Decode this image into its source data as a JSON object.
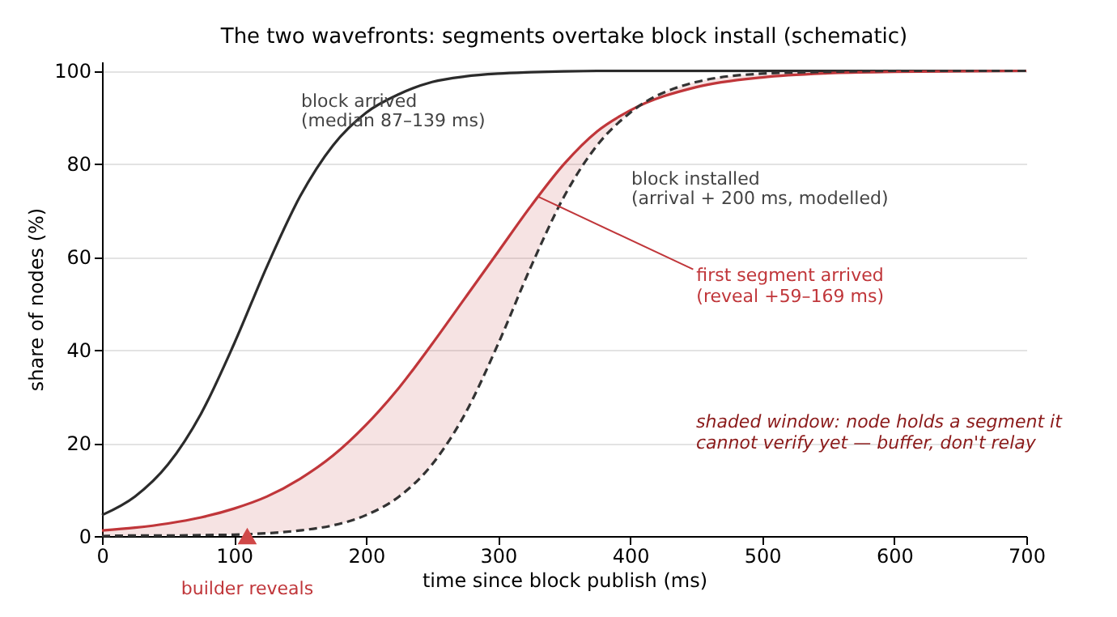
{
  "chart_data": {
    "type": "line",
    "title": "The two wavefronts: segments overtake block install (schematic)",
    "xlabel": "time since block publish (ms)",
    "ylabel": "share of nodes (%)",
    "x": [
      0,
      25,
      50,
      75,
      100,
      125,
      150,
      175,
      200,
      225,
      250,
      275,
      300,
      325,
      350,
      375,
      400,
      450,
      500,
      550,
      600,
      700
    ],
    "series": [
      {
        "name": "block arrived",
        "color": "#2b2b2b",
        "line_style": "solid",
        "values": [
          4.5,
          8.5,
          15.4,
          26.3,
          41.3,
          58,
          73,
          84,
          91,
          95,
          97.6,
          98.8,
          99.4,
          99.7,
          99.9,
          100,
          100,
          100,
          100,
          100,
          100,
          100
        ]
      },
      {
        "name": "first segment arrived",
        "color": "#c0363a",
        "line_style": "solid",
        "values": [
          1.2,
          1.8,
          2.7,
          4.0,
          5.9,
          8.5,
          12.3,
          17.3,
          23.9,
          31.9,
          41.3,
          51.2,
          61.1,
          71,
          80,
          87,
          91.5,
          96.5,
          98.6,
          99.5,
          99.8,
          100
        ],
        "lower": [
          0,
          0.1,
          0.1,
          0.2,
          0.3,
          0.6,
          1.2,
          2.3,
          4.5,
          8.5,
          15.4,
          26.3,
          41.3,
          58,
          73,
          84,
          91,
          97.6,
          99.4,
          99.8,
          100,
          100
        ],
        "upper": [
          1.2,
          1.8,
          2.7,
          4.0,
          5.9,
          8.5,
          12.3,
          17.3,
          23.9,
          31.9,
          41.3,
          51.2,
          61.1,
          71,
          80,
          87,
          91.5,
          96.5,
          98.6,
          99.5,
          99.8,
          100
        ]
      },
      {
        "name": "block installed",
        "color": "#333333",
        "line_style": "dashed",
        "values": [
          0,
          0.1,
          0.1,
          0.2,
          0.3,
          0.6,
          1.2,
          2.3,
          4.5,
          8.5,
          15.4,
          26.3,
          41.3,
          58,
          73,
          84,
          91,
          97.6,
          99.4,
          99.8,
          100,
          100
        ]
      },
      {
        "type": "scatter",
        "marker": "triangle",
        "color": "#d04848",
        "x": [
          110
        ],
        "values": [
          0
        ]
      }
    ],
    "xlim": [
      0,
      700
    ],
    "xticks": [
      0,
      100,
      200,
      300,
      400,
      500,
      600,
      700
    ],
    "ylim": [
      0,
      102
    ],
    "yticks": [
      0,
      20,
      40,
      60,
      80,
      100
    ],
    "grid": "y",
    "marker": "none",
    "annotations": [
      "(median 87–139 ms)",
      {
        "text": "(reveal +59–169 ms)",
        "x": 330,
        "y": 73
      },
      "(arrival + 200 ms, modelled)",
      {
        "text": "builder reveals",
        "x": 110,
        "y": 0
      },
      "shaded window: node holds a segment it\ncannot verify yet — buffer, don't relay"
    ]
  }
}
